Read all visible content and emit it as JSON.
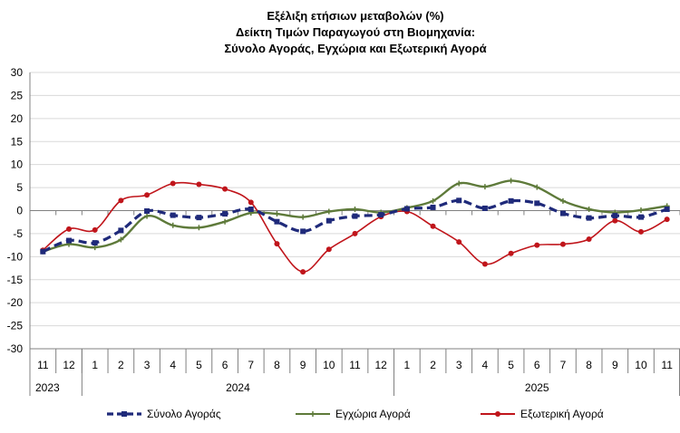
{
  "chart_data": {
    "type": "line",
    "title": [
      "Εξέλιξη ετήσιων μεταβολών (%)",
      "Δείκτη Τιμών Παραγωγού στη Βιομηχανία:",
      "Σύνολο Αγοράς, Εγχώρια και Εξωτερική Αγορά"
    ],
    "categories": [
      "11",
      "12",
      "1",
      "2",
      "3",
      "4",
      "5",
      "6",
      "7",
      "8",
      "9",
      "10",
      "11",
      "12",
      "1",
      "2",
      "3",
      "4",
      "5",
      "6",
      "7",
      "8",
      "9",
      "10",
      "11"
    ],
    "years": [
      {
        "label": "2023",
        "span": 2
      },
      {
        "label": "2024",
        "span": 12
      },
      {
        "label": "2025",
        "span": 11
      }
    ],
    "ylim": [
      -30,
      30
    ],
    "yticks": [
      -30,
      -25,
      -20,
      -15,
      -10,
      -5,
      0,
      5,
      10,
      15,
      20,
      25,
      30
    ],
    "grid": true,
    "legend": "bottom",
    "series": [
      {
        "name": "Σύνολο Αγοράς",
        "color": "#1F2A7A",
        "style": "dashed",
        "marker": "square",
        "values": [
          -8.9,
          -6.5,
          -7.0,
          -4.3,
          -0.1,
          -1.0,
          -1.5,
          -0.7,
          0.3,
          -2.4,
          -4.5,
          -2.2,
          -1.2,
          -0.9,
          0.4,
          0.7,
          2.2,
          0.5,
          2.1,
          1.6,
          -0.6,
          -1.6,
          -1.1,
          -1.4,
          0.3
        ]
      },
      {
        "name": "Εγχώρια Αγορά",
        "color": "#5E7A3A",
        "style": "solid",
        "marker": "plus",
        "values": [
          -8.9,
          -7.3,
          -8.0,
          -6.3,
          -1.2,
          -3.2,
          -3.7,
          -2.4,
          -0.5,
          -0.7,
          -1.4,
          -0.2,
          0.3,
          -0.4,
          0.6,
          2.1,
          5.9,
          5.2,
          6.5,
          5.1,
          2.1,
          0.3,
          -0.4,
          0.1,
          1.0
        ]
      },
      {
        "name": "Εξωτερική Αγορά",
        "color": "#C0151B",
        "style": "solid",
        "marker": "circle",
        "values": [
          -8.6,
          -4.0,
          -4.2,
          2.2,
          3.4,
          5.9,
          5.7,
          4.7,
          1.8,
          -7.2,
          -13.3,
          -8.4,
          -5.0,
          -1.3,
          -0.2,
          -3.4,
          -6.8,
          -11.6,
          -9.3,
          -7.5,
          -7.3,
          -6.2,
          -2.2,
          -4.6,
          -1.9
        ]
      }
    ]
  }
}
